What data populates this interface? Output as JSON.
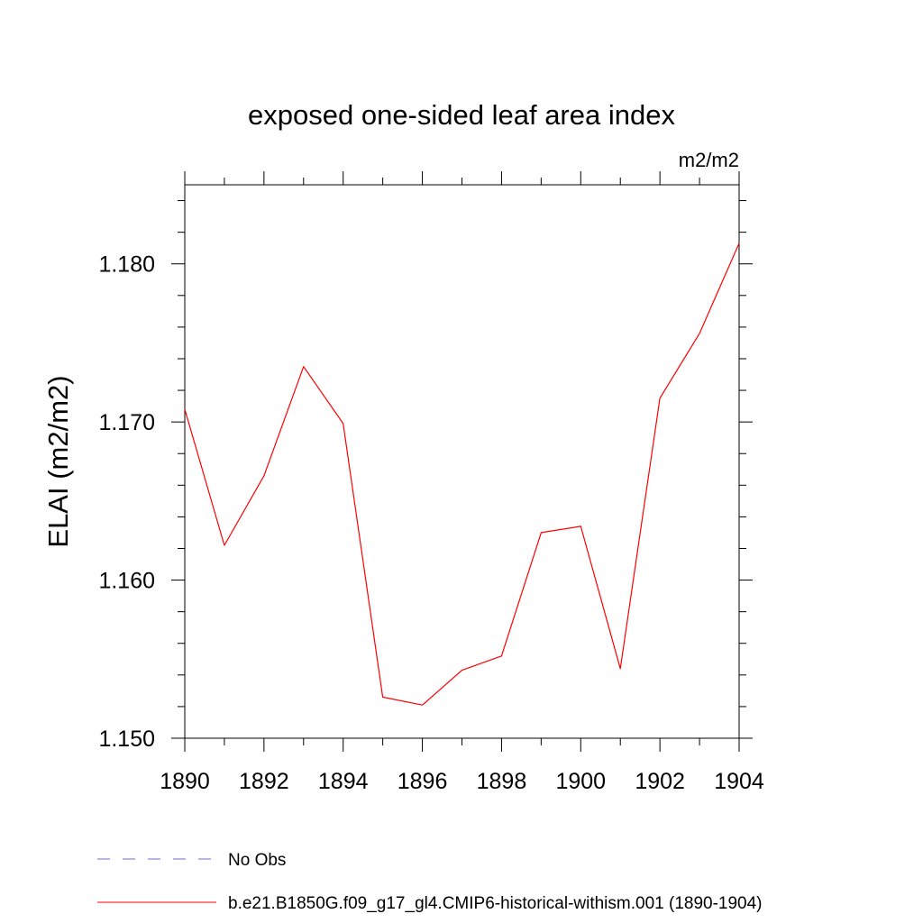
{
  "chart_data": {
    "type": "line",
    "title": "exposed one-sided leaf area index",
    "units_label": "m2/m2",
    "ylabel": "ELAI  (m2/m2)",
    "xlabel": "",
    "xlim": [
      1890,
      1904
    ],
    "ylim": [
      1.15,
      1.185
    ],
    "x_ticks": [
      1890,
      1892,
      1894,
      1896,
      1898,
      1900,
      1902,
      1904
    ],
    "x_tick_labels": [
      "1890",
      "1892",
      "1894",
      "1896",
      "1898",
      "1900",
      "1902",
      "1904"
    ],
    "y_ticks": [
      1.15,
      1.16,
      1.17,
      1.18
    ],
    "y_tick_labels": [
      "1.150",
      "1.160",
      "1.170",
      "1.180"
    ],
    "grid": false,
    "legend_position": "bottom-left",
    "series": [
      {
        "name": "b.e21.B1850G.f09_g17_gl4.CMIP6-historical-withism.001 (1890-1904)",
        "color": "#ff0000",
        "dash": "solid",
        "x": [
          1890,
          1891,
          1892,
          1893,
          1894,
          1895,
          1896,
          1897,
          1898,
          1899,
          1900,
          1901,
          1902,
          1903,
          1904
        ],
        "y": [
          1.1708,
          1.1622,
          1.1666,
          1.1735,
          1.1699,
          1.1526,
          1.1521,
          1.1543,
          1.1552,
          1.163,
          1.1634,
          1.1544,
          1.1715,
          1.1756,
          1.1813
        ]
      }
    ],
    "legend": [
      {
        "label": "No Obs",
        "color": "#7b68c8",
        "dash": "dashed"
      },
      {
        "label": "b.e21.B1850G.f09_g17_gl4.CMIP6-historical-withism.001 (1890-1904)",
        "color": "#ff0000",
        "dash": "solid"
      }
    ]
  }
}
